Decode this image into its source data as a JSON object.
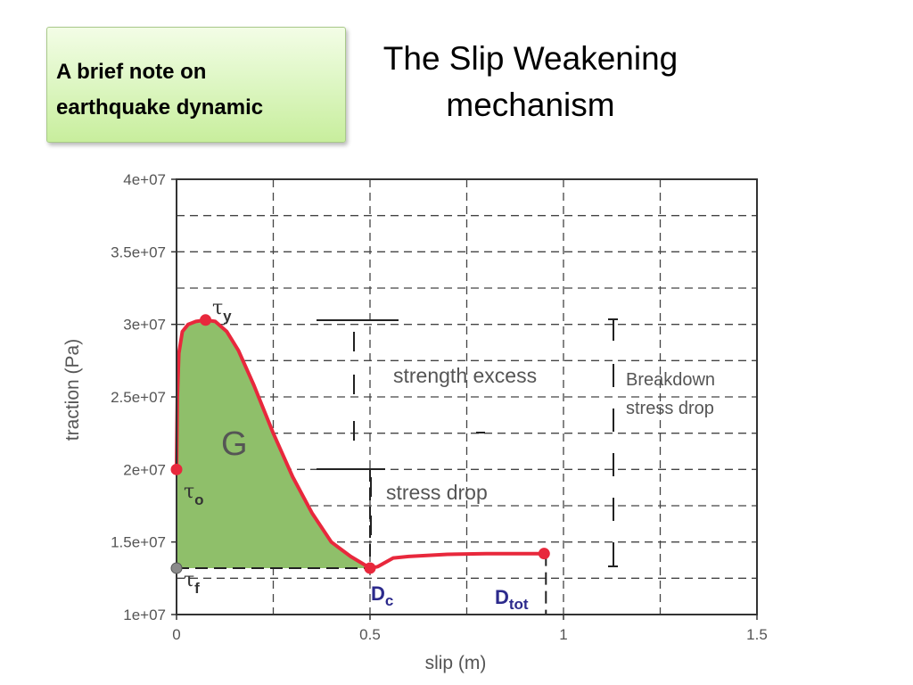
{
  "note": {
    "line1": "A brief note on",
    "line2": "earthquake dynamic"
  },
  "title": {
    "line1": "The Slip Weakening",
    "line2": "mechanism"
  },
  "chart_data": {
    "type": "line",
    "xlabel": "slip (m)",
    "ylabel": "traction (Pa)",
    "xlim": [
      0,
      1.5
    ],
    "ylim": [
      10000000,
      40000000
    ],
    "xticks": [
      0,
      0.5,
      1,
      1.5
    ],
    "xtick_labels": [
      "0",
      "0.5",
      "1",
      "1.5"
    ],
    "yticks": [
      10000000,
      15000000,
      20000000,
      25000000,
      30000000,
      35000000,
      40000000
    ],
    "ytick_labels": [
      "1e+07",
      "1.5e+07",
      "2e+07",
      "2.5e+07",
      "3e+07",
      "3.5e+07",
      "4e+07"
    ],
    "grid": true,
    "x_grid_step": 0.25,
    "y_grid_step": 2500000,
    "curve": {
      "x": [
        0,
        0.002,
        0.006,
        0.015,
        0.03,
        0.05,
        0.075,
        0.1,
        0.13,
        0.16,
        0.2,
        0.25,
        0.3,
        0.35,
        0.4,
        0.45,
        0.5,
        0.52,
        0.56,
        0.6,
        0.7,
        0.8,
        0.9,
        0.95
      ],
      "y": [
        20000000,
        25000000,
        28000000,
        29500000,
        30000000,
        30200000,
        30300000,
        30200000,
        29500000,
        28200000,
        25800000,
        22500000,
        19500000,
        17000000,
        15000000,
        14000000,
        13200000,
        13300000,
        13900000,
        14000000,
        14150000,
        14200000,
        14200000,
        14200000
      ],
      "color": "#e8283c"
    },
    "fill_color": "#8fbf6a",
    "tau_f": 13200000,
    "points": [
      {
        "name": "tau-o",
        "x": 0,
        "y": 20000000
      },
      {
        "name": "tau-y",
        "x": 0.075,
        "y": 30300000
      },
      {
        "name": "dc",
        "x": 0.5,
        "y": 13200000
      },
      {
        "name": "dtot",
        "x": 0.95,
        "y": 14200000
      }
    ],
    "tau_f_point": {
      "x": 0,
      "y": 13200000
    },
    "annotations": {
      "area": "G",
      "tau_y": {
        "symbol": "τ",
        "sub": "y"
      },
      "tau_o": {
        "symbol": "τ",
        "sub": "o"
      },
      "tau_f": {
        "symbol": "τ",
        "sub": "f"
      },
      "dc": {
        "main": "D",
        "sub": "c"
      },
      "dtot": {
        "main": "D",
        "sub": "tot"
      },
      "strength_excess": "strength excess",
      "stress_drop": "stress drop",
      "breakdown_line1": "Breakdown",
      "breakdown_line2": "stress drop"
    }
  }
}
